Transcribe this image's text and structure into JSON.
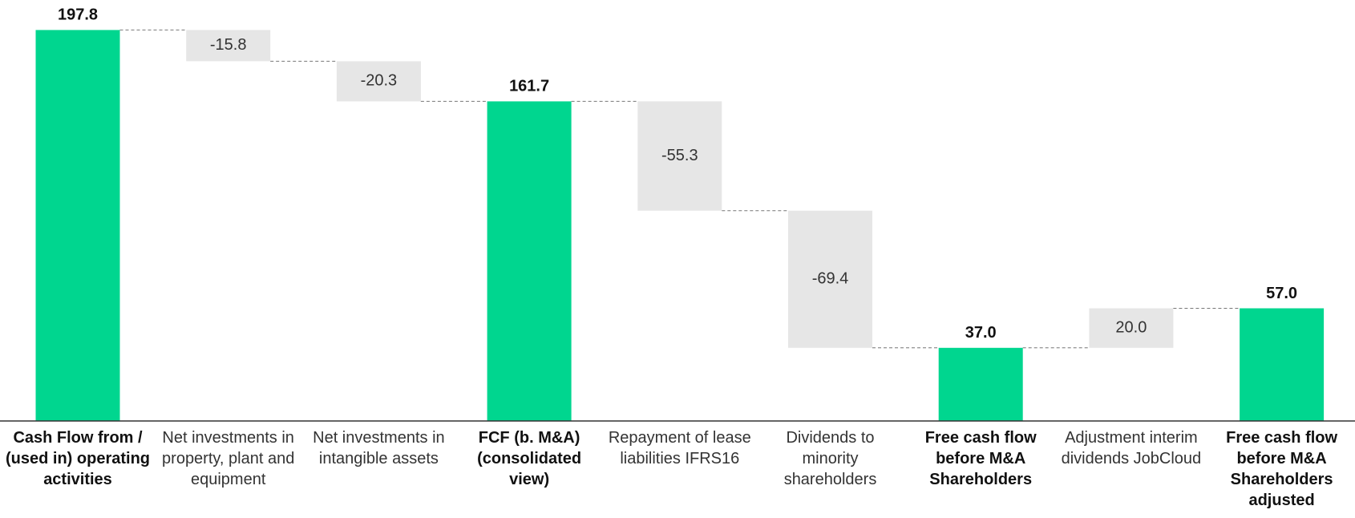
{
  "chart_data": {
    "type": "waterfall",
    "categories": [
      "Cash Flow from / (used in) operating activities",
      "Net investments in property, plant and equipment",
      "Net investments in intangible assets",
      "FCF (b. M&A) (consolidated view)",
      "Repayment of lease liabilities IFRS16",
      "Dividends to minority shareholders",
      "Free cash flow before M&A Shareholders",
      "Adjustment interim dividends JobCloud",
      "Free cash flow before M&A Shareholders adjusted"
    ],
    "values": [
      197.8,
      -15.8,
      -20.3,
      161.7,
      -55.3,
      -69.4,
      37,
      20,
      57
    ],
    "value_labels": [
      "197.8",
      "-15.8",
      "-20.3",
      "161.7",
      "-55.3",
      "-69.4",
      "37.0",
      "20.0",
      "57.0"
    ],
    "totals": [
      true,
      false,
      false,
      true,
      false,
      false,
      true,
      false,
      true
    ],
    "total_color": "#00d68f",
    "change_color": "#e6e6e6",
    "ylim": [
      0,
      200
    ]
  }
}
